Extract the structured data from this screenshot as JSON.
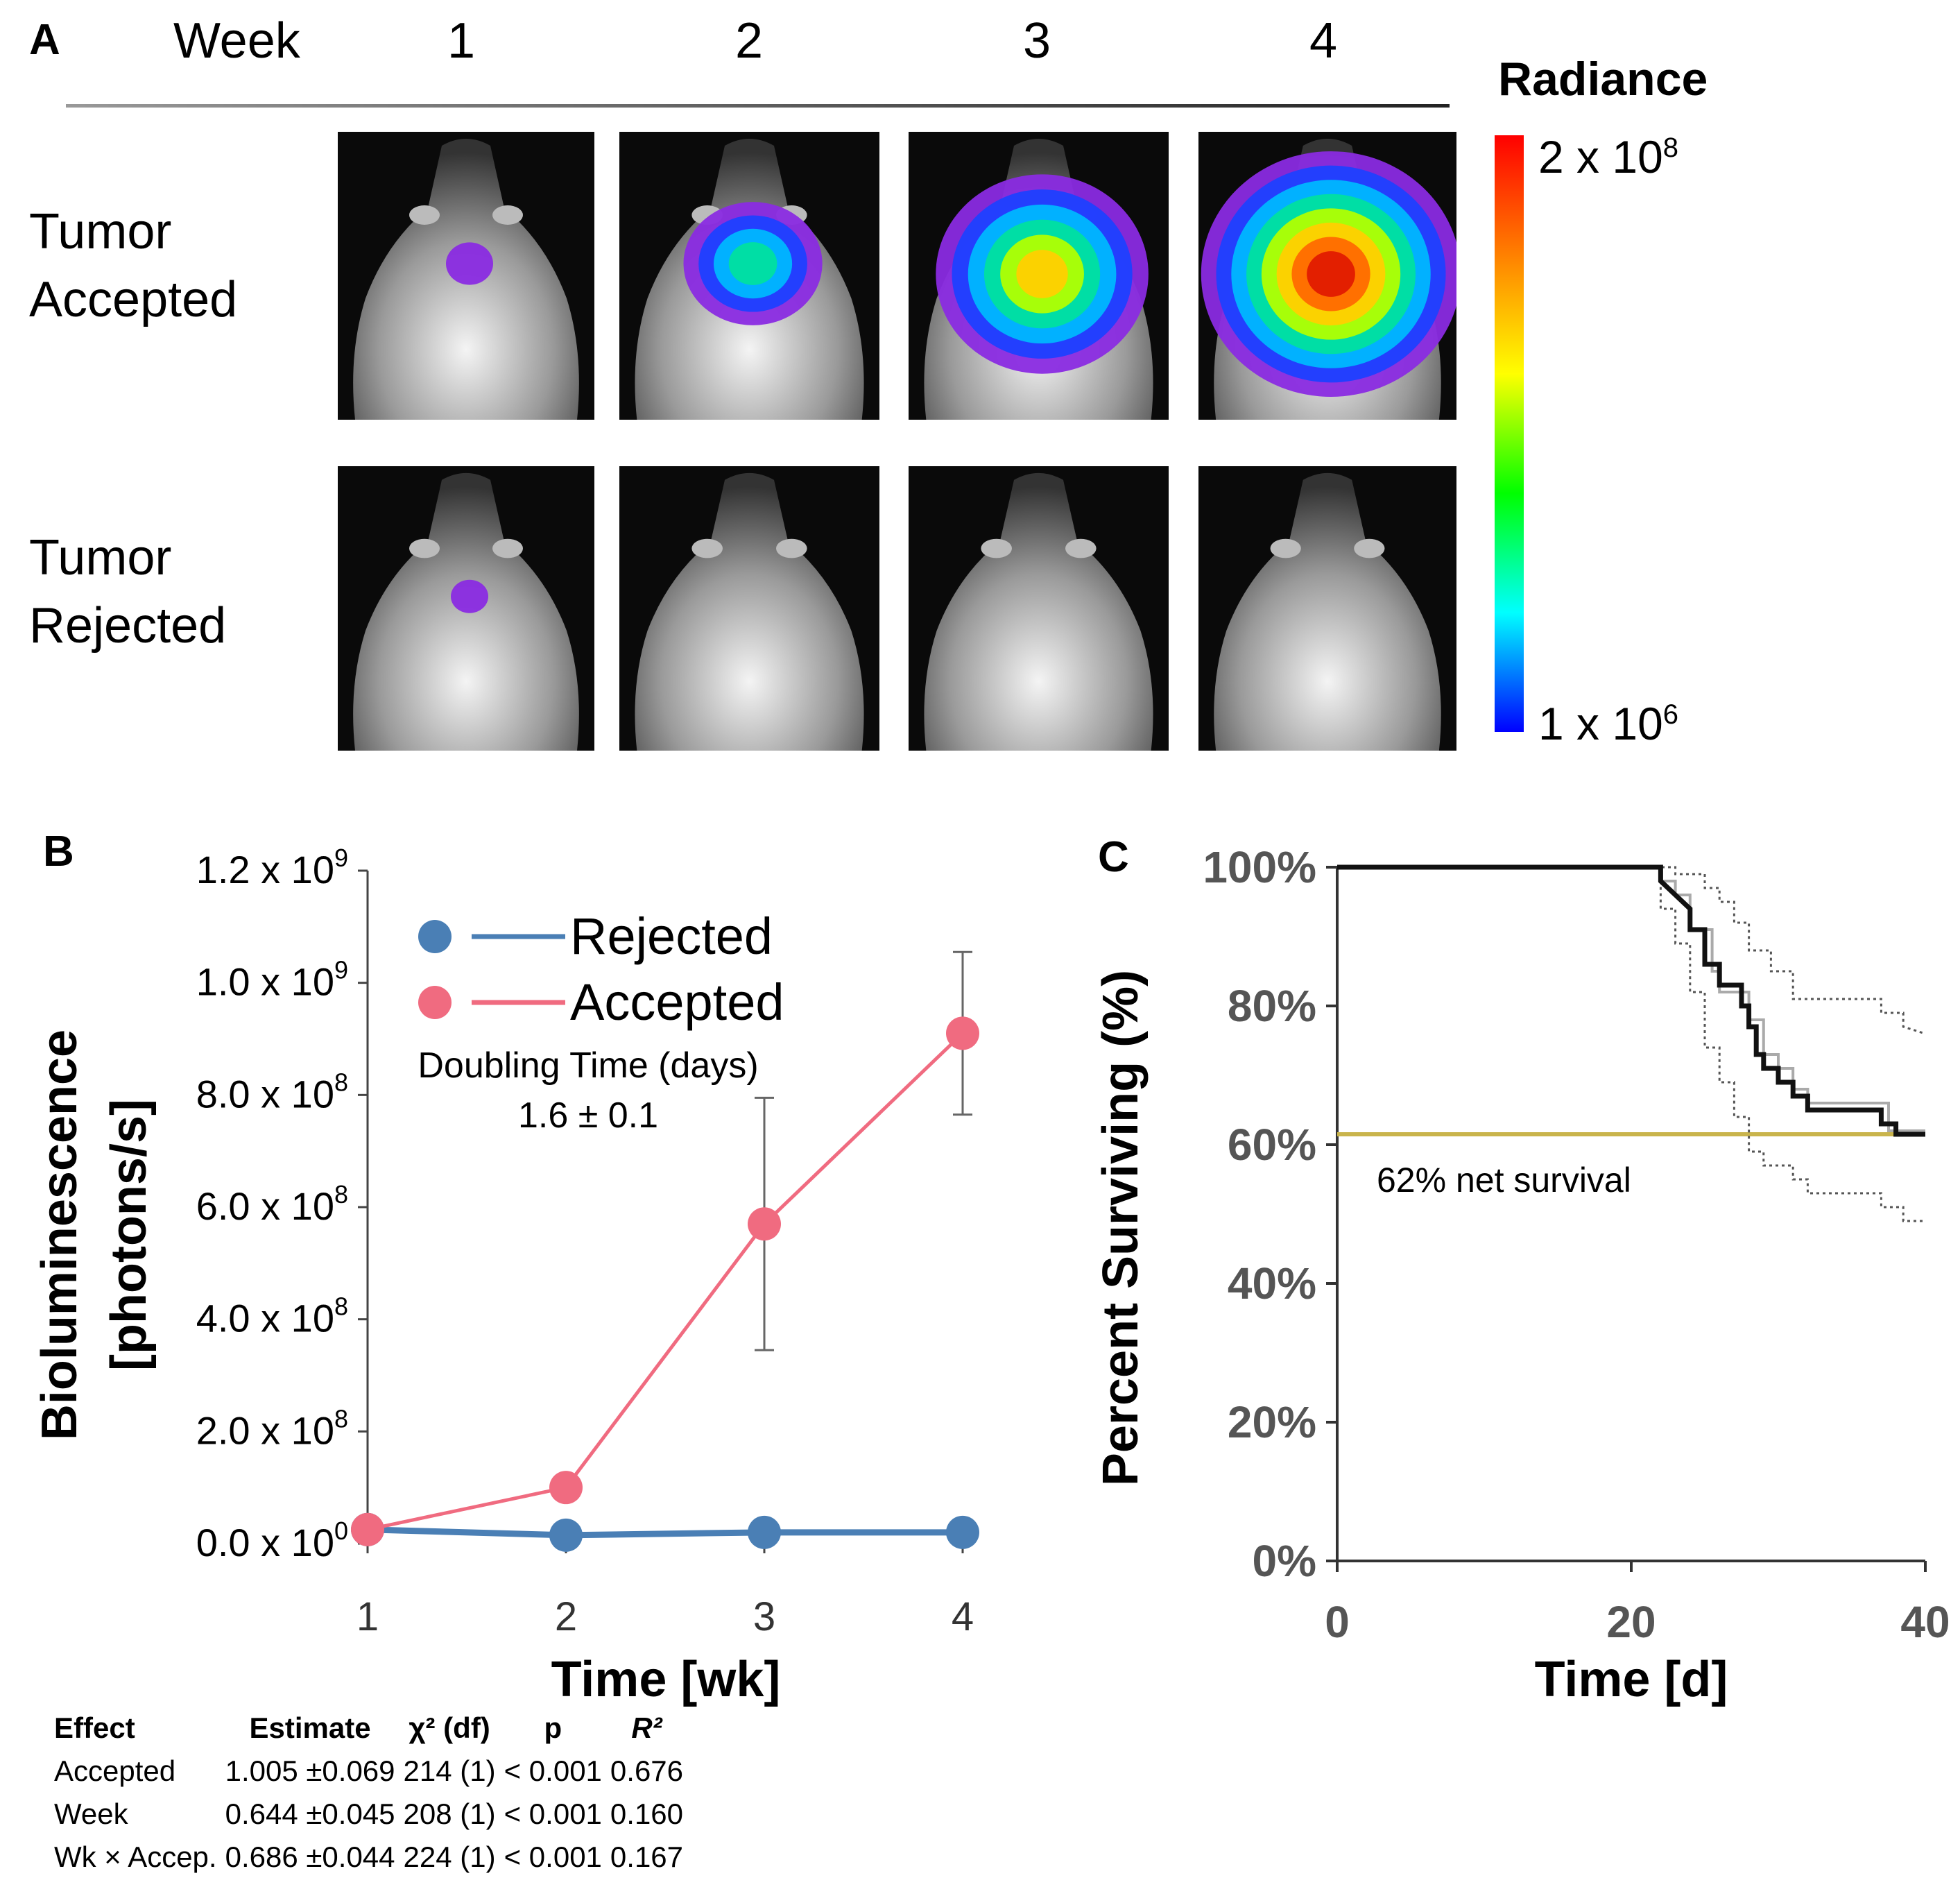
{
  "panelA": {
    "letter": "A",
    "week_label": "Week",
    "weeks": [
      "1",
      "2",
      "3",
      "4"
    ],
    "rows": [
      {
        "label_line1": "Tumor",
        "label_line2": "Accepted",
        "signal_levels": [
          0.08,
          0.45,
          0.75,
          0.95
        ]
      },
      {
        "label_line1": "Tumor",
        "label_line2": "Rejected",
        "signal_levels": [
          0.04,
          0,
          0,
          0
        ]
      }
    ],
    "colorbar": {
      "title": "Radiance",
      "max_label": "2 x 10",
      "max_exp": "8",
      "min_label": "1 x 10",
      "min_exp": "6",
      "colors": [
        "#0000ff",
        "#00ffff",
        "#00ff00",
        "#ffff00",
        "#ff8000",
        "#ff0000"
      ]
    }
  },
  "panelB": {
    "letter": "B",
    "legend": {
      "rejected": "Rejected",
      "accepted": "Accepted"
    },
    "annotation_line1": "Doubling Time (days)",
    "annotation_line2": "1.6 ± 0.1",
    "stats_table": {
      "headers": [
        "Effect",
        "Estimate",
        "χ² (df)",
        "p",
        "R²"
      ],
      "rows": [
        [
          "Accepted",
          "1.005 ±0.069",
          "214 (1)",
          "< 0.001",
          "0.676"
        ],
        [
          "Week",
          "0.644 ±0.045",
          "208 (1)",
          "< 0.001",
          "0.160"
        ],
        [
          "Wk × Accep.",
          "0.686 ±0.044",
          "224 (1)",
          "< 0.001",
          "0.167"
        ]
      ]
    }
  },
  "panelC": {
    "letter": "C",
    "annotation": "62% net survival"
  },
  "chart_data": [
    {
      "type": "line",
      "title": "",
      "xlabel": "Time [wk]",
      "ylabel_line1": "Bioluminescence",
      "ylabel_line2": "[photons/s]",
      "x": [
        1,
        2,
        3,
        4
      ],
      "xticks": [
        "1",
        "2",
        "3",
        "4"
      ],
      "ylim": [
        0,
        1200000000.0
      ],
      "yticks": [
        {
          "value": 0,
          "mant": "0.0 x 10",
          "exp": "0"
        },
        {
          "value": 200000000.0,
          "mant": "2.0 x 10",
          "exp": "8"
        },
        {
          "value": 400000000.0,
          "mant": "4.0 x 10",
          "exp": "8"
        },
        {
          "value": 600000000.0,
          "mant": "6.0 x 10",
          "exp": "8"
        },
        {
          "value": 800000000.0,
          "mant": "8.0 x 10",
          "exp": "8"
        },
        {
          "value": 1000000000.0,
          "mant": "1.0 x 10",
          "exp": "9"
        },
        {
          "value": 1200000000.0,
          "mant": "1.2 x 10",
          "exp": "9"
        }
      ],
      "series": [
        {
          "name": "Rejected",
          "color": "#4a7fb5",
          "values": [
            25000000.0,
            15000000.0,
            20000000.0,
            20000000.0
          ],
          "err": [
            0,
            0,
            0,
            0
          ]
        },
        {
          "name": "Accepted",
          "color": "#f06b80",
          "values": [
            25000000.0,
            100000000.0,
            570000000.0,
            910000000.0
          ],
          "err": [
            0,
            0,
            225000000.0,
            145000000.0
          ]
        }
      ]
    },
    {
      "type": "line",
      "title": "",
      "xlabel": "Time [d]",
      "ylabel": "Percent Surviving (%)",
      "xlim": [
        0,
        40
      ],
      "ylim": [
        0,
        100
      ],
      "xticks": [
        0,
        20,
        40
      ],
      "yticks": [
        {
          "value": 0,
          "label": "0%"
        },
        {
          "value": 20,
          "label": "20%"
        },
        {
          "value": 40,
          "label": "40%"
        },
        {
          "value": 60,
          "label": "60%"
        },
        {
          "value": 80,
          "label": "80%"
        },
        {
          "value": 100,
          "label": "100%"
        }
      ],
      "reference_line": {
        "y": 61.5,
        "color": "#c9b44c"
      },
      "survival": [
        [
          0,
          100
        ],
        [
          22,
          100
        ],
        [
          22,
          98
        ],
        [
          23,
          96
        ],
        [
          24,
          94
        ],
        [
          24,
          91
        ],
        [
          25,
          91
        ],
        [
          25,
          86
        ],
        [
          26,
          86
        ],
        [
          26,
          83
        ],
        [
          27.5,
          83
        ],
        [
          27.5,
          80
        ],
        [
          28,
          80
        ],
        [
          28,
          77
        ],
        [
          28.5,
          77
        ],
        [
          28.5,
          73
        ],
        [
          29,
          73
        ],
        [
          29,
          71
        ],
        [
          30,
          71
        ],
        [
          30,
          69
        ],
        [
          31,
          69
        ],
        [
          31,
          67
        ],
        [
          32,
          67
        ],
        [
          32,
          65
        ],
        [
          37,
          65
        ],
        [
          37,
          63
        ],
        [
          38,
          63
        ],
        [
          38,
          61.5
        ],
        [
          40,
          61.5
        ]
      ],
      "ci_upper": [
        [
          0,
          100
        ],
        [
          22,
          100
        ],
        [
          23,
          100
        ],
        [
          23,
          99
        ],
        [
          25,
          99
        ],
        [
          25,
          97
        ],
        [
          26,
          97
        ],
        [
          26,
          95
        ],
        [
          27,
          95
        ],
        [
          27,
          92
        ],
        [
          28,
          92
        ],
        [
          28,
          88
        ],
        [
          29.5,
          88
        ],
        [
          29.5,
          85
        ],
        [
          31,
          85
        ],
        [
          31,
          81
        ],
        [
          37,
          81
        ],
        [
          37,
          79
        ],
        [
          38.5,
          79
        ],
        [
          38.5,
          77
        ],
        [
          40,
          76
        ]
      ],
      "ci_lower": [
        [
          0,
          100
        ],
        [
          22,
          100
        ],
        [
          22,
          94
        ],
        [
          23,
          94
        ],
        [
          23,
          89
        ],
        [
          24,
          89
        ],
        [
          24,
          82
        ],
        [
          25,
          82
        ],
        [
          25,
          74
        ],
        [
          26,
          74
        ],
        [
          26,
          69
        ],
        [
          27,
          69
        ],
        [
          27,
          64
        ],
        [
          28,
          64
        ],
        [
          28,
          59
        ],
        [
          29,
          59
        ],
        [
          29,
          57
        ],
        [
          31,
          57
        ],
        [
          31,
          55
        ],
        [
          32,
          55
        ],
        [
          32,
          53
        ],
        [
          37,
          53
        ],
        [
          37,
          51
        ],
        [
          38.5,
          51
        ],
        [
          38.5,
          49
        ],
        [
          40,
          49
        ]
      ],
      "grey_line": [
        [
          0,
          100
        ],
        [
          22,
          100
        ],
        [
          22,
          98
        ],
        [
          23,
          98
        ],
        [
          23,
          96
        ],
        [
          24,
          96
        ],
        [
          24,
          91
        ],
        [
          25.5,
          91
        ],
        [
          25.5,
          85
        ],
        [
          26,
          85
        ],
        [
          26,
          82
        ],
        [
          28,
          82
        ],
        [
          28,
          78
        ],
        [
          29,
          78
        ],
        [
          29,
          73
        ],
        [
          30,
          73
        ],
        [
          30,
          71
        ],
        [
          31,
          71
        ],
        [
          31,
          68
        ],
        [
          32,
          68
        ],
        [
          32,
          66
        ],
        [
          37.5,
          66
        ],
        [
          37.5,
          62
        ],
        [
          40,
          62
        ]
      ]
    }
  ]
}
